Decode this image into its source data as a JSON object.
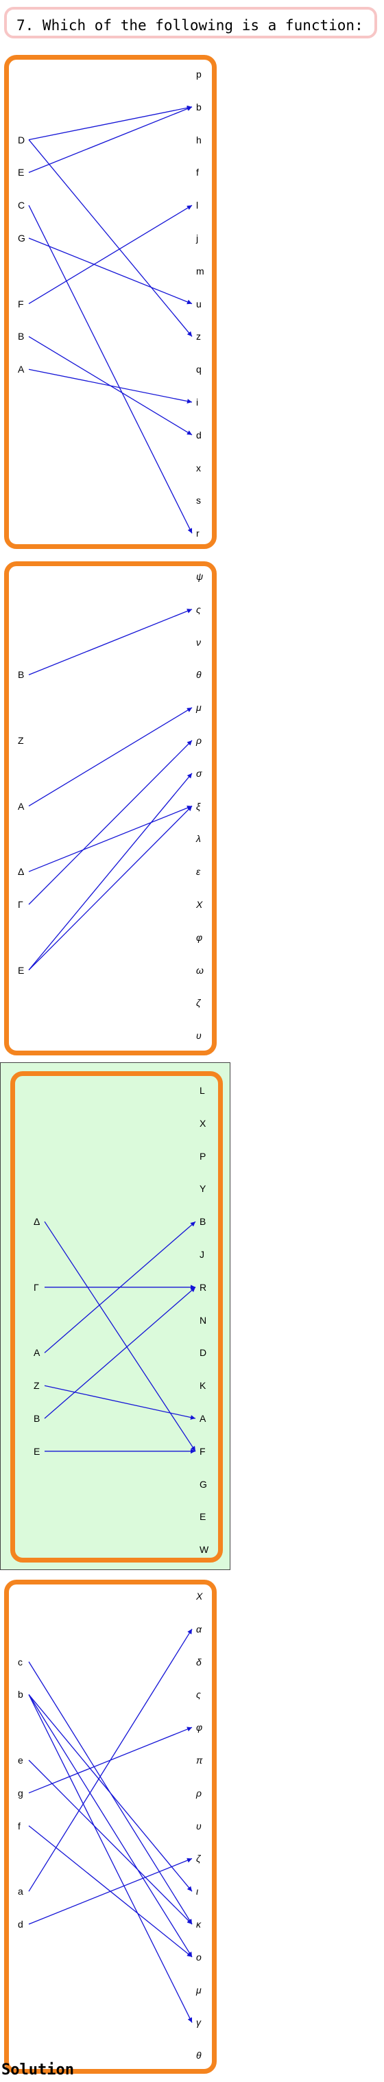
{
  "question": "7. Which of the following is a function:",
  "solution_label": "Solution",
  "colors": {
    "frame": "#f4841f",
    "arrow": "#1414d6",
    "highlight": "#dbfadb",
    "question_border": "#f7c6c6"
  },
  "options": [
    {
      "highlight": false,
      "domain": [
        {
          "label": "D",
          "row": 2
        },
        {
          "label": "E",
          "row": 3
        },
        {
          "label": "C",
          "row": 4
        },
        {
          "label": "G",
          "row": 5
        },
        {
          "label": "F",
          "row": 7
        },
        {
          "label": "B",
          "row": 8
        },
        {
          "label": "A",
          "row": 9
        }
      ],
      "codomain": [
        "p",
        "b",
        "h",
        "f",
        "l",
        "j",
        "m",
        "u",
        "z",
        "q",
        "i",
        "d",
        "x",
        "s",
        "r"
      ],
      "italic": false,
      "arrows": [
        [
          "D",
          "b"
        ],
        [
          "D",
          "z"
        ],
        [
          "E",
          "b"
        ],
        [
          "C",
          "r"
        ],
        [
          "G",
          "u"
        ],
        [
          "F",
          "l"
        ],
        [
          "B",
          "d"
        ],
        [
          "A",
          "i"
        ]
      ]
    },
    {
      "highlight": false,
      "domain": [
        {
          "label": "B",
          "row": 3
        },
        {
          "label": "Z",
          "row": 5
        },
        {
          "label": "A",
          "row": 7
        },
        {
          "label": "Δ",
          "row": 9
        },
        {
          "label": "Γ",
          "row": 10
        },
        {
          "label": "E",
          "row": 12
        }
      ],
      "codomain": [
        "ψ",
        "ς",
        "ν",
        "θ",
        "μ",
        "ρ",
        "σ",
        "ξ",
        "λ",
        "ε",
        "Χ",
        "φ",
        "ω",
        "ζ",
        "υ"
      ],
      "italic": true,
      "arrows": [
        [
          "B",
          "ς"
        ],
        [
          "A",
          "μ"
        ],
        [
          "Δ",
          "ξ"
        ],
        [
          "Γ",
          "ρ"
        ],
        [
          "E",
          "σ"
        ],
        [
          "E",
          "ξ"
        ]
      ]
    },
    {
      "highlight": true,
      "domain": [
        {
          "label": "Δ",
          "row": 4
        },
        {
          "label": "Γ",
          "row": 6
        },
        {
          "label": "A",
          "row": 8
        },
        {
          "label": "Z",
          "row": 9
        },
        {
          "label": "B",
          "row": 10
        },
        {
          "label": "E",
          "row": 11
        }
      ],
      "codomain": [
        "L",
        "X",
        "P",
        "Y",
        "B",
        "J",
        "R",
        "N",
        "D",
        "K",
        "A",
        "F",
        "G",
        "E",
        "W"
      ],
      "italic": false,
      "arrows": [
        [
          "Δ",
          "F"
        ],
        [
          "Γ",
          "R"
        ],
        [
          "A",
          "B"
        ],
        [
          "Z",
          "A"
        ],
        [
          "B",
          "R"
        ],
        [
          "E",
          "F"
        ]
      ]
    },
    {
      "highlight": false,
      "domain": [
        {
          "label": "c",
          "row": 2
        },
        {
          "label": "b",
          "row": 3
        },
        {
          "label": "e",
          "row": 5
        },
        {
          "label": "g",
          "row": 6
        },
        {
          "label": "f",
          "row": 7
        },
        {
          "label": "a",
          "row": 9
        },
        {
          "label": "d",
          "row": 10
        }
      ],
      "codomain": [
        "Χ",
        "α",
        "δ",
        "ς",
        "φ",
        "π",
        "ρ",
        "υ",
        "ζ",
        "ι",
        "κ",
        "ο",
        "μ",
        "γ",
        "θ"
      ],
      "italic": true,
      "arrows": [
        [
          "c",
          "κ"
        ],
        [
          "b",
          "ι"
        ],
        [
          "b",
          "ο"
        ],
        [
          "b",
          "γ"
        ],
        [
          "e",
          "κ"
        ],
        [
          "g",
          "φ"
        ],
        [
          "f",
          "ο"
        ],
        [
          "a",
          "α"
        ],
        [
          "d",
          "ζ"
        ]
      ]
    }
  ]
}
